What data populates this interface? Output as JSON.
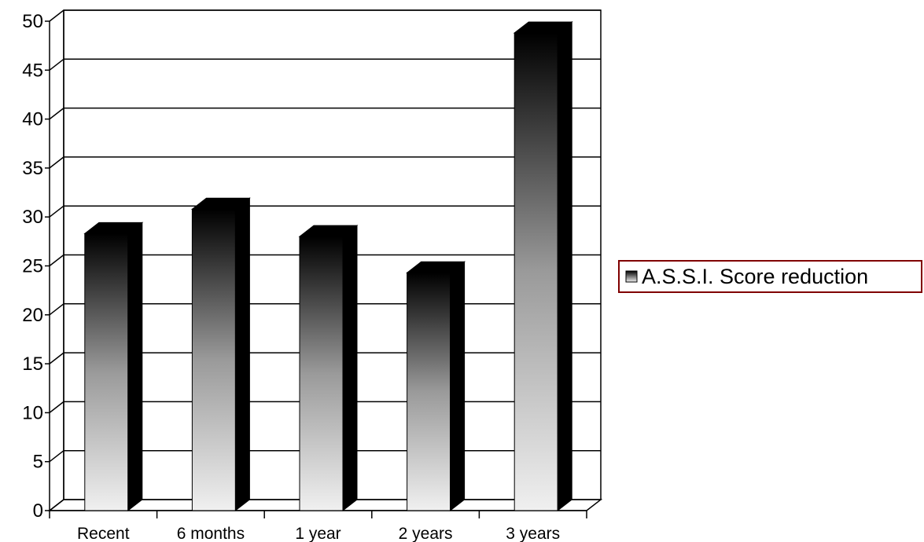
{
  "chart_data": {
    "type": "bar",
    "categories": [
      "Recent",
      "6 months",
      "1 year",
      "2 years",
      "3 years"
    ],
    "series": [
      {
        "name": "A.S.S.I. Score reduction",
        "values": [
          28.3,
          30.8,
          28.0,
          24.3,
          48.8
        ]
      }
    ],
    "ylim": [
      0,
      50
    ],
    "yticks": [
      0,
      5,
      10,
      15,
      20,
      25,
      30,
      35,
      40,
      45,
      50
    ],
    "grid": true,
    "legend": "right",
    "colors": {
      "bar_dark": "#000000",
      "bar_light": "#f0f0f0",
      "legend_border": "#800000",
      "grid": "#000000"
    }
  }
}
